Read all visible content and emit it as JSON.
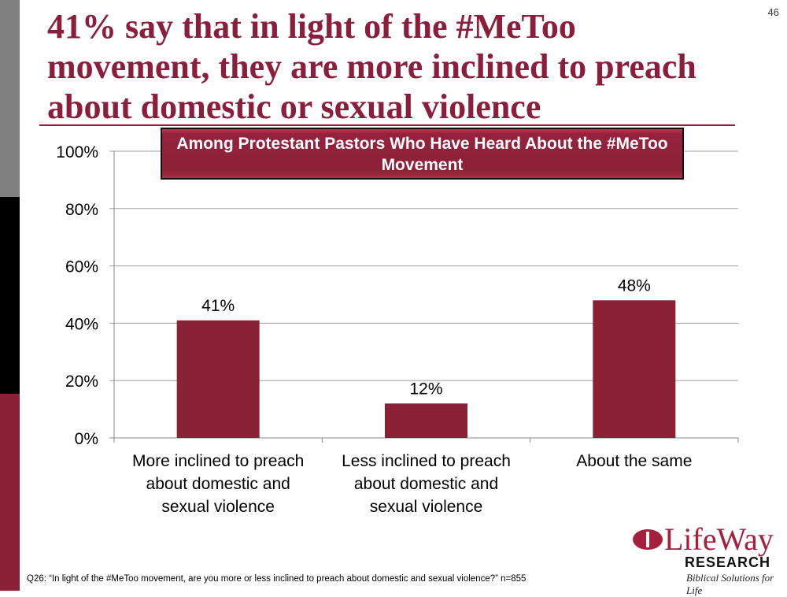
{
  "slide": {
    "title": "41% say that in light of the #MeToo movement, they are more inclined to preach about domestic or sexual violence",
    "page_number": "46",
    "subtitle": "Among Protestant Pastors Who Have Heard About the #MeToo Movement",
    "footnote": "Q26: “In light of the #MeToo movement, are you more or less inclined to preach about domestic and sexual violence?” n=855",
    "logo": {
      "name": "LifeWay",
      "research": "RESEARCH",
      "tagline": "Biblical Solutions for Life"
    }
  },
  "colors": {
    "accent": "#8b2137",
    "title": "#8b1e3a"
  },
  "chart_data": {
    "type": "bar",
    "categories": [
      "More inclined to preach about domestic and sexual violence",
      "Less inclined to preach about domestic and sexual violence",
      "About the same"
    ],
    "category_lines": [
      [
        "More inclined to preach",
        "about domestic and",
        "sexual violence"
      ],
      [
        "Less inclined to preach",
        "about domestic and",
        "sexual violence"
      ],
      [
        "About the same"
      ]
    ],
    "values": [
      41,
      12,
      48
    ],
    "data_labels": [
      "41%",
      "12%",
      "48%"
    ],
    "yticks": [
      0,
      20,
      40,
      60,
      80,
      100
    ],
    "ytick_labels": [
      "0%",
      "20%",
      "40%",
      "60%",
      "80%",
      "100%"
    ],
    "ylim": [
      0,
      100
    ],
    "grid": true,
    "xlabel": "",
    "ylabel": ""
  }
}
